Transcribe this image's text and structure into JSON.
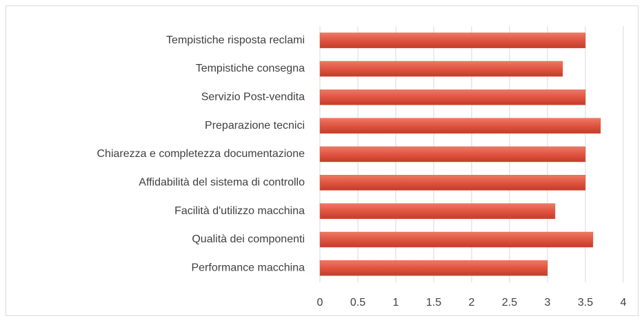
{
  "chart_data": {
    "type": "bar",
    "orientation": "horizontal",
    "categories": [
      "Tempistiche risposta reclami",
      "Tempistiche consegna",
      "Servizio Post-vendita",
      "Preparazione tecnici",
      "Chiarezza e completezza documentazione",
      "Affidabilità del sistema di controllo",
      "Facilità d'utilizzo macchina",
      "Qualità dei componenti",
      "Performance macchina"
    ],
    "values": [
      3.5,
      3.2,
      3.5,
      3.7,
      3.5,
      3.5,
      3.1,
      3.6,
      3.0
    ],
    "color": "#e05440",
    "xlim": [
      0,
      4
    ],
    "xticks": [
      0,
      0.5,
      1,
      1.5,
      2,
      2.5,
      3,
      3.5,
      4
    ],
    "grid": true
  }
}
